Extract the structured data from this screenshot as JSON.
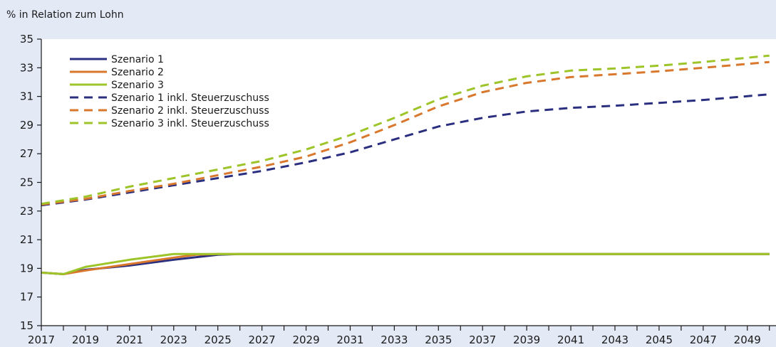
{
  "chart_data": {
    "type": "line",
    "ylabel": "% in Relation zum Lohn",
    "title": "",
    "xlabel": "",
    "ylim": [
      15,
      35
    ],
    "yticks": [
      15,
      17,
      19,
      21,
      23,
      25,
      27,
      29,
      31,
      33,
      35
    ],
    "xlim": [
      2017,
      2050
    ],
    "xticks": [
      2017,
      2019,
      2021,
      2023,
      2025,
      2027,
      2029,
      2031,
      2033,
      2035,
      2037,
      2039,
      2041,
      2043,
      2045,
      2047,
      2049
    ],
    "grid": false,
    "legend_position": "top-left",
    "series": [
      {
        "name": "Szenario 1",
        "color": "#2b2f80",
        "style": "solid",
        "x": [
          2017,
          2018,
          2019,
          2021,
          2023,
          2025,
          2026,
          2027,
          2030,
          2035,
          2040,
          2045,
          2050
        ],
        "y": [
          18.7,
          18.6,
          18.9,
          19.2,
          19.6,
          19.95,
          20.0,
          20.0,
          20.0,
          20.0,
          20.0,
          20.0,
          20.0
        ]
      },
      {
        "name": "Szenario 2",
        "color": "#d9782c",
        "style": "solid",
        "x": [
          2017,
          2018,
          2019,
          2021,
          2023,
          2024,
          2025,
          2027,
          2030,
          2035,
          2040,
          2045,
          2050
        ],
        "y": [
          18.7,
          18.6,
          18.85,
          19.3,
          19.75,
          19.95,
          20.0,
          20.0,
          20.0,
          20.0,
          20.0,
          20.0,
          20.0
        ]
      },
      {
        "name": "Szenario 3",
        "color": "#9dc428",
        "style": "solid",
        "x": [
          2017,
          2018,
          2019,
          2021,
          2023,
          2025,
          2027,
          2030,
          2035,
          2040,
          2045,
          2050
        ],
        "y": [
          18.7,
          18.6,
          19.1,
          19.6,
          20.0,
          20.0,
          20.0,
          20.0,
          20.0,
          20.0,
          20.0,
          20.0
        ]
      },
      {
        "name": "Szenario 1 inkl. Steuerzuschuss",
        "color": "#2b2f80",
        "style": "dashed",
        "x": [
          2017,
          2019,
          2021,
          2023,
          2025,
          2027,
          2029,
          2031,
          2033,
          2035,
          2037,
          2039,
          2041,
          2043,
          2045,
          2047,
          2050
        ],
        "y": [
          23.4,
          23.8,
          24.3,
          24.8,
          25.3,
          25.8,
          26.4,
          27.1,
          28.0,
          28.9,
          29.5,
          29.95,
          30.2,
          30.35,
          30.55,
          30.75,
          31.15
        ]
      },
      {
        "name": "Szenario 2 inkl. Steuerzuschuss",
        "color": "#d9782c",
        "style": "dashed",
        "x": [
          2017,
          2019,
          2021,
          2023,
          2025,
          2027,
          2029,
          2031,
          2033,
          2035,
          2037,
          2039,
          2041,
          2043,
          2045,
          2047,
          2050
        ],
        "y": [
          23.45,
          23.85,
          24.4,
          24.9,
          25.5,
          26.1,
          26.8,
          27.8,
          29.0,
          30.3,
          31.3,
          31.95,
          32.35,
          32.55,
          32.75,
          33.0,
          33.4
        ]
      },
      {
        "name": "Szenario 3 inkl. Steuerzuschuss",
        "color": "#9dc428",
        "style": "dashed",
        "x": [
          2017,
          2019,
          2021,
          2023,
          2025,
          2027,
          2029,
          2031,
          2033,
          2035,
          2037,
          2039,
          2041,
          2043,
          2045,
          2047,
          2050
        ],
        "y": [
          23.5,
          24.0,
          24.7,
          25.3,
          25.9,
          26.5,
          27.3,
          28.3,
          29.5,
          30.8,
          31.75,
          32.4,
          32.8,
          32.95,
          33.15,
          33.4,
          33.85
        ]
      }
    ]
  }
}
